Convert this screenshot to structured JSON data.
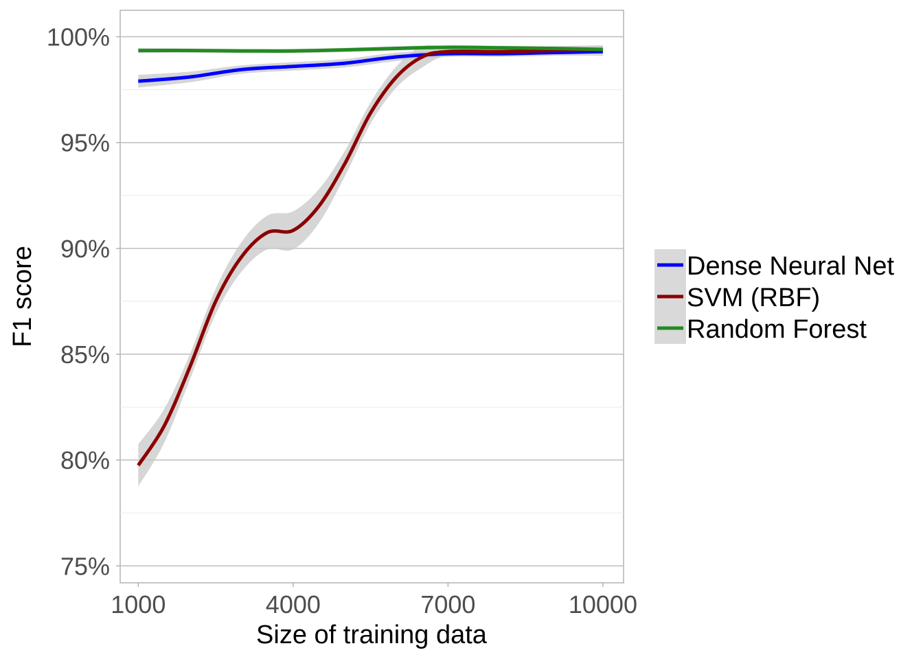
{
  "chart_data": {
    "type": "line",
    "title": "",
    "xlabel": "Size of training data",
    "ylabel": "F1 score",
    "xlim": [
      650,
      10400
    ],
    "ylim": [
      74.2,
      101.25
    ],
    "x_ticks": [
      1000,
      4000,
      7000,
      10000
    ],
    "x_tick_labels": [
      "1000",
      "4000",
      "7000",
      "10000"
    ],
    "y_ticks": [
      75,
      80,
      85,
      90,
      95,
      100
    ],
    "y_tick_labels": [
      "75%",
      "80%",
      "85%",
      "90%",
      "95%",
      "100%"
    ],
    "grid": true,
    "legend_position": "right",
    "series": [
      {
        "name": "Dense Neural Net",
        "color": "#0000ff",
        "x": [
          1000,
          2000,
          3000,
          4000,
          5000,
          6000,
          7000,
          8000,
          9000,
          10000
        ],
        "y": [
          97.9,
          98.1,
          98.45,
          98.6,
          98.75,
          99.05,
          99.2,
          99.2,
          99.25,
          99.3
        ],
        "ci_half_width": [
          0.3,
          0.25,
          0.2,
          0.2,
          0.2,
          0.2,
          0.15,
          0.15,
          0.15,
          0.2
        ]
      },
      {
        "name": "SVM (RBF)",
        "color": "#8b0000",
        "x": [
          1000,
          1500,
          2000,
          2500,
          3000,
          3500,
          4000,
          4500,
          5000,
          5500,
          6000,
          6500,
          7000,
          8000,
          9000,
          10000
        ],
        "y": [
          79.75,
          81.6,
          84.4,
          87.5,
          89.6,
          90.75,
          90.85,
          92.0,
          94.0,
          96.4,
          98.1,
          99.05,
          99.3,
          99.3,
          99.35,
          99.4
        ],
        "ci_half_width": [
          1.0,
          0.8,
          0.6,
          0.6,
          0.7,
          0.8,
          0.9,
          0.8,
          0.6,
          0.5,
          0.5,
          0.5,
          0.2,
          0.2,
          0.2,
          0.2
        ]
      },
      {
        "name": "Random Forest",
        "color": "#228b22",
        "x": [
          1000,
          2000,
          3000,
          4000,
          5000,
          6000,
          7000,
          8000,
          9000,
          10000
        ],
        "y": [
          99.35,
          99.35,
          99.33,
          99.33,
          99.38,
          99.45,
          99.5,
          99.48,
          99.45,
          99.4
        ],
        "ci_half_width": [
          0.12,
          0.1,
          0.1,
          0.1,
          0.1,
          0.1,
          0.1,
          0.1,
          0.1,
          0.15
        ]
      }
    ]
  }
}
